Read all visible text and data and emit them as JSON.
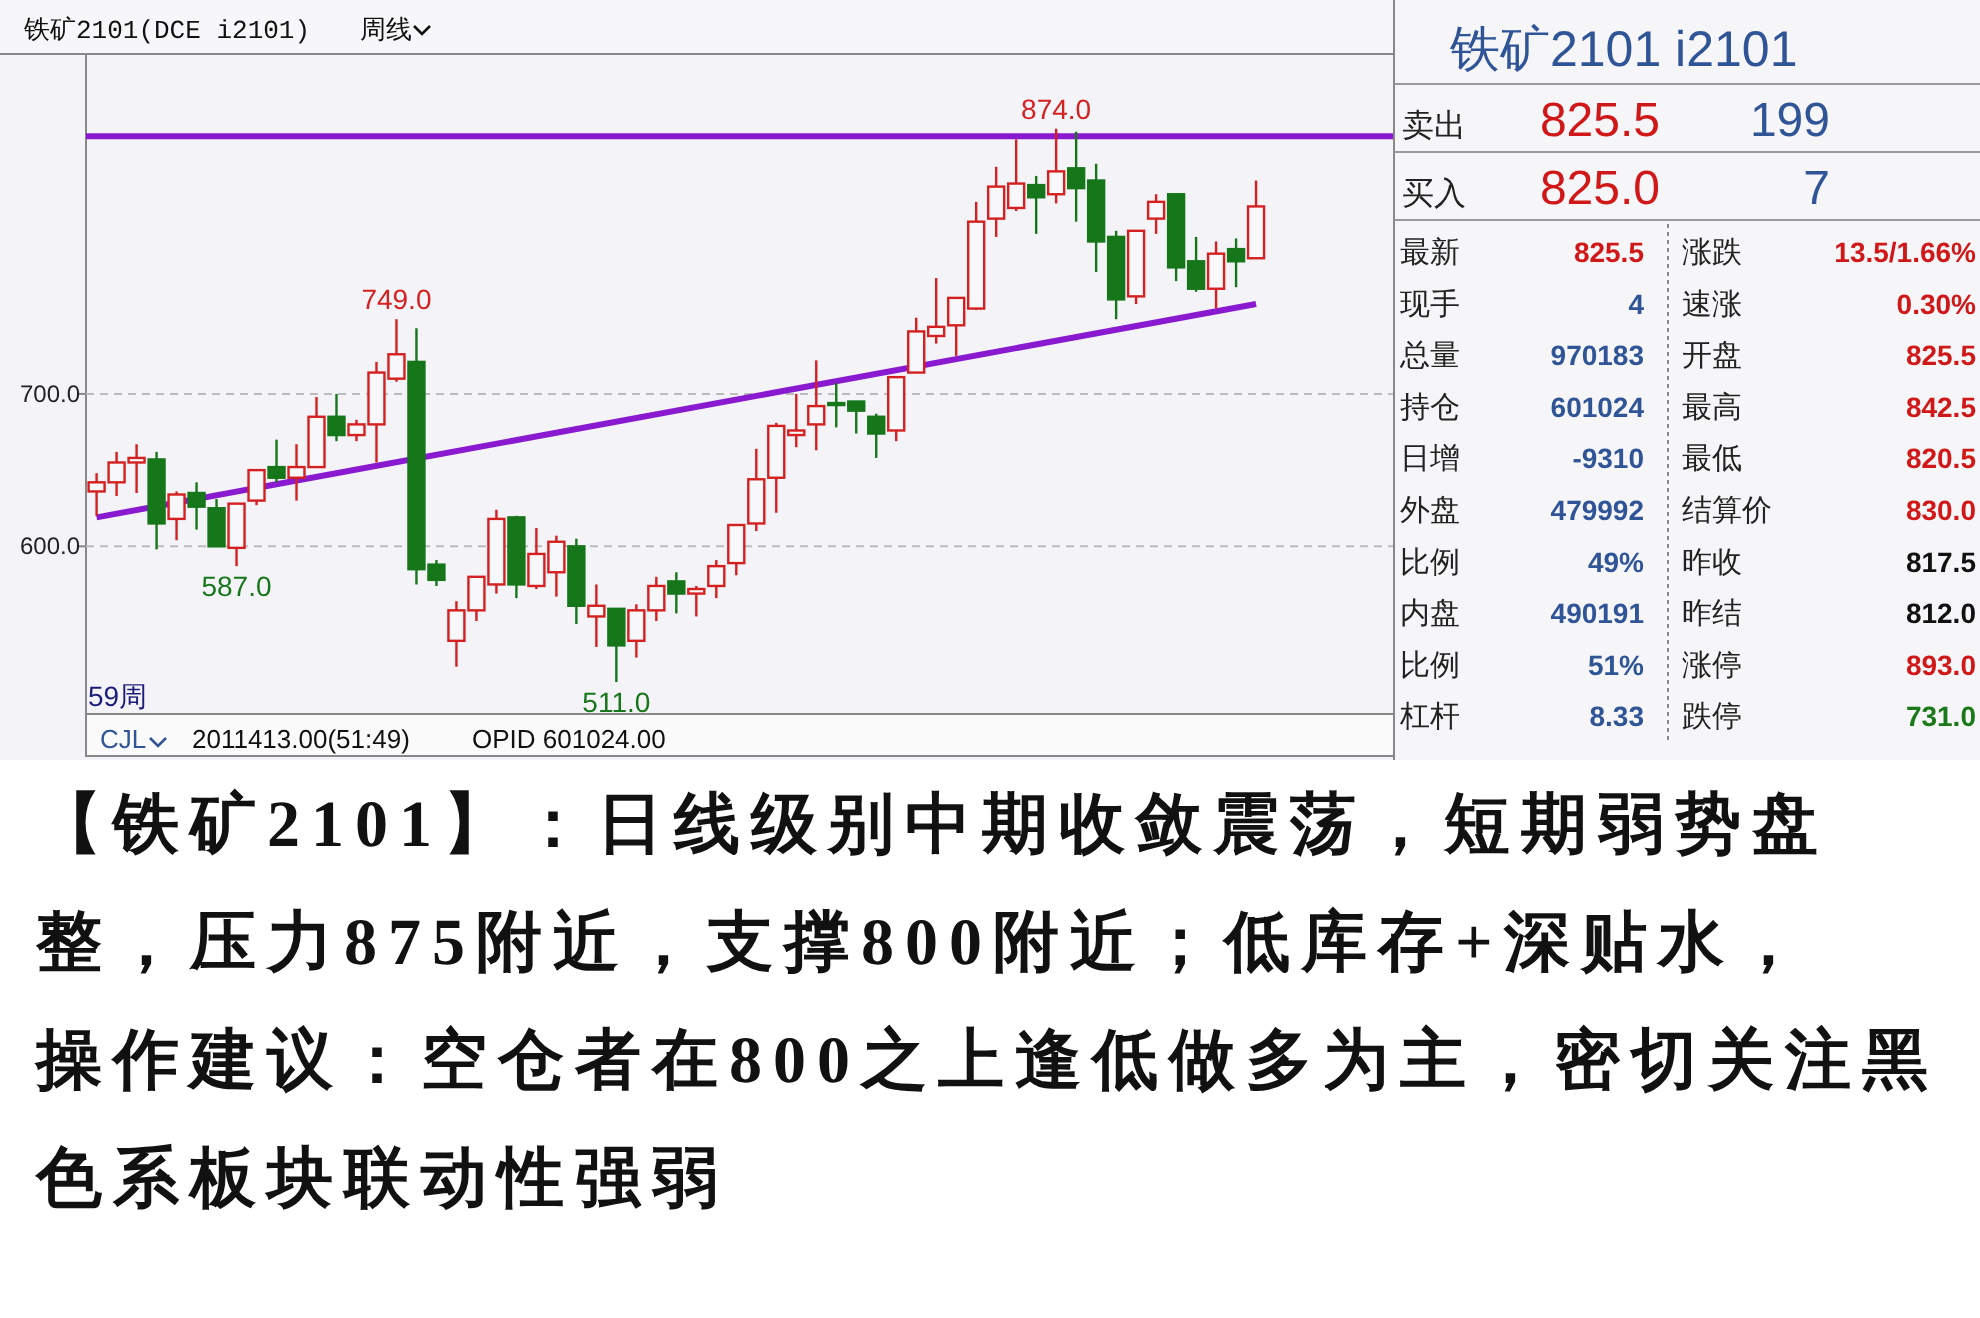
{
  "chart_data": [
    {
      "type": "candlestick",
      "title": "铁矿2101(DCE i2101)",
      "subtitle": "周线",
      "categories": [
        null,
        null,
        null,
        null,
        null,
        null,
        null,
        null,
        null,
        null,
        null,
        null,
        null,
        null,
        null,
        null,
        null,
        null,
        null,
        null,
        null,
        null,
        null,
        null,
        null,
        null,
        null,
        null,
        null,
        null,
        null,
        null,
        null,
        null,
        null,
        null,
        null,
        null,
        null,
        null,
        null,
        null,
        null,
        null,
        null,
        null,
        null,
        null,
        null,
        null,
        null,
        null,
        null,
        null,
        null,
        null,
        null,
        null,
        null
      ],
      "ohlc": [
        [
          636,
          648,
          620,
          642
        ],
        [
          642,
          662,
          633,
          655
        ],
        [
          655,
          667,
          635,
          658
        ],
        [
          657,
          662,
          598,
          615
        ],
        [
          618,
          636,
          604,
          634
        ],
        [
          635,
          642,
          611,
          626
        ],
        [
          625,
          631,
          600,
          600
        ],
        [
          599,
          628,
          587,
          628
        ],
        [
          630,
          650,
          627,
          650
        ],
        [
          652,
          670,
          642,
          645
        ],
        [
          645,
          667,
          630,
          652
        ],
        [
          652,
          698,
          652,
          685
        ],
        [
          685,
          700,
          669,
          673
        ],
        [
          673,
          683,
          669,
          680
        ],
        [
          680,
          721,
          655,
          714
        ],
        [
          710,
          749,
          708,
          726
        ],
        [
          721,
          743,
          575,
          585
        ],
        [
          588,
          591,
          574,
          578
        ],
        [
          538,
          564,
          521,
          558
        ],
        [
          558,
          580,
          551,
          580
        ],
        [
          575,
          624,
          569,
          618
        ],
        [
          619,
          620,
          566,
          575
        ],
        [
          574,
          612,
          572,
          595
        ],
        [
          583,
          607,
          567,
          603
        ],
        [
          600,
          605,
          549,
          561
        ],
        [
          554,
          575,
          534,
          561
        ],
        [
          559,
          559,
          511,
          535
        ],
        [
          538,
          562,
          527,
          558
        ],
        [
          558,
          580,
          551,
          574
        ],
        [
          577,
          583,
          556,
          569
        ],
        [
          569,
          574,
          554,
          572
        ],
        [
          574,
          591,
          566,
          587
        ],
        [
          589,
          614,
          581,
          614
        ],
        [
          615,
          664,
          610,
          644
        ],
        [
          645,
          681,
          622,
          679
        ],
        [
          673,
          700,
          665,
          676
        ],
        [
          680,
          722,
          663,
          692
        ],
        [
          694,
          707,
          678,
          693
        ],
        [
          695,
          695,
          674,
          689
        ],
        [
          685,
          687,
          658,
          674
        ],
        [
          676,
          711,
          669,
          711
        ],
        [
          714,
          750,
          714,
          741
        ],
        [
          738,
          776,
          733,
          744
        ],
        [
          745,
          763,
          725,
          763
        ],
        [
          756,
          826,
          755,
          813
        ],
        [
          815,
          849,
          803,
          836
        ],
        [
          822,
          867,
          820,
          838
        ],
        [
          837,
          843,
          805,
          829
        ],
        [
          831,
          874,
          825,
          846
        ],
        [
          848,
          872,
          813,
          835
        ],
        [
          840,
          851,
          780,
          800
        ],
        [
          803,
          807,
          749,
          762
        ],
        [
          764,
          807,
          759,
          807
        ],
        [
          815,
          831,
          805,
          826
        ],
        [
          831,
          831,
          774,
          783
        ],
        [
          787,
          803,
          767,
          769
        ],
        [
          769,
          800,
          756,
          792
        ],
        [
          795,
          802,
          770,
          787
        ],
        [
          789,
          840,
          789,
          823
        ]
      ],
      "series": [
        {
          "type": "line",
          "values": [
            619,
            null,
            null,
            null,
            null,
            null,
            null,
            null,
            null,
            null,
            null,
            null,
            null,
            null,
            null,
            null,
            null,
            null,
            null,
            null,
            null,
            null,
            null,
            null,
            null,
            null,
            null,
            null,
            null,
            null,
            null,
            null,
            null,
            null,
            null,
            null,
            null,
            null,
            null,
            null,
            null,
            null,
            null,
            null,
            null,
            null,
            null,
            null,
            null,
            null,
            null,
            null,
            null,
            null,
            null,
            null,
            null,
            null,
            759
          ],
          "color": "#8a1ad0"
        }
      ],
      "ref_lines": [
        {
          "axis": "y",
          "value": 869,
          "color": "#8a1ad0"
        }
      ],
      "ylim": [
        490,
        923
      ],
      "yticks": [
        {
          "value": 700,
          "label": "700.0"
        },
        {
          "value": 600,
          "label": "600.0"
        }
      ],
      "grid": "y",
      "annotations": [
        {
          "text": "749.0",
          "y": 749
        },
        {
          "text": "587.0",
          "y": 587
        },
        {
          "text": "874.0",
          "y": 874
        },
        {
          "text": "511.0",
          "y": 511
        },
        "59周",
        "CJL",
        "2011413.00(51:49)",
        "OPID 601024.00",
        "【铁矿2101】：日线级别中期收敛震荡，短期弱势盘整，压力875附近，支撑800附近；低库存+深贴水，",
        "操作建议：空仓者在800之上逢低做多为主，密切关注黑色系板块联动性强弱"
      ]
    },
    {
      "type": "other",
      "title": "铁矿2101  i2101",
      "annotations": [
        "卖出",
        "825.5",
        "199",
        "买入",
        "825.0",
        "7",
        "最新",
        "825.5",
        "涨跌",
        "13.5/1.66%",
        "现手",
        "4",
        "速涨",
        "0.30%",
        "总量",
        "970183",
        "开盘",
        "825.5",
        "持仓",
        "601024",
        "最高",
        "842.5",
        "日增",
        "-9310",
        "最低",
        "820.5",
        "外盘",
        "479992",
        "结算价",
        "830.0",
        "比例",
        "49%",
        "昨收",
        "817.5",
        "内盘",
        "490191",
        "昨结",
        "812.0",
        "比例",
        "51%",
        "涨停",
        "893.0",
        "杠杆",
        "8.33",
        "跌停",
        "731.0"
      ],
      "colors": [
        "#222222",
        "#d01818",
        "#2f5597",
        "#222222",
        "#d01818",
        "#2f5597",
        "#222222",
        "#d01818",
        "#222222",
        "#d01818",
        "#222222",
        "#2f5597",
        "#222222",
        "#d01818",
        "#222222",
        "#2f5597",
        "#222222",
        "#d01818",
        "#222222",
        "#2f5597",
        "#222222",
        "#d01818",
        "#222222",
        "#2f5597",
        "#222222",
        "#d01818",
        "#222222",
        "#2f5597",
        "#222222",
        "#d01818",
        "#222222",
        "#2f5597",
        "#222222",
        "#111111",
        "#222222",
        "#2f5597",
        "#222222",
        "#111111",
        "#222222",
        "#2f5597",
        "#222222",
        "#d01818",
        "#222222",
        "#2f5597",
        "#222222",
        "#1a7a1a"
      ]
    }
  ]
}
